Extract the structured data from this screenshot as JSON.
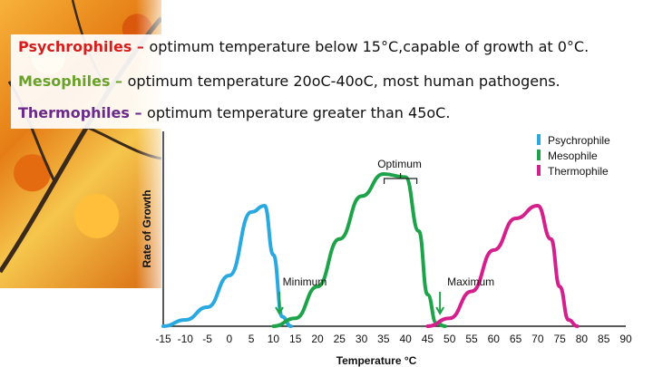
{
  "header_lines": [
    {
      "term": "Psychrophiles",
      "dash": " – ",
      "desc": "optimum temperature below 15°C,capable of growth at 0°C."
    },
    {
      "term": "Mesophiles",
      "dash": " – ",
      "desc": "optimum temperature 20oC-40oC, most human pathogens."
    },
    {
      "term": "Thermophiles",
      "dash": " – ",
      "desc": "optimum temperature greater than 45oC."
    }
  ],
  "chart_data": {
    "type": "line",
    "xlabel": "Temperature °C",
    "ylabel": "Rate of Growth",
    "xlim": [
      -15,
      90
    ],
    "x_ticks": [
      -15,
      -10,
      -5,
      0,
      5,
      10,
      15,
      20,
      25,
      30,
      35,
      40,
      45,
      50,
      55,
      60,
      65,
      70,
      75,
      80,
      85,
      90
    ],
    "ylim": [
      0,
      1
    ],
    "series": [
      {
        "name": "Psychrophile",
        "color": "#29a9e0",
        "points": [
          [
            -15,
            0
          ],
          [
            -10,
            0.04
          ],
          [
            -5,
            0.12
          ],
          [
            0,
            0.32
          ],
          [
            5,
            0.72
          ],
          [
            8,
            0.76
          ],
          [
            10,
            0.45
          ],
          [
            12,
            0.06
          ],
          [
            14,
            0
          ]
        ]
      },
      {
        "name": "Mesophile",
        "color": "#1fa34a",
        "points": [
          [
            10,
            0
          ],
          [
            15,
            0.05
          ],
          [
            20,
            0.25
          ],
          [
            25,
            0.55
          ],
          [
            30,
            0.82
          ],
          [
            35,
            0.96
          ],
          [
            40,
            0.94
          ],
          [
            43,
            0.6
          ],
          [
            45,
            0.2
          ],
          [
            47,
            0.02
          ],
          [
            49,
            0
          ]
        ]
      },
      {
        "name": "Thermophile",
        "color": "#d4208d",
        "points": [
          [
            45,
            0
          ],
          [
            50,
            0.05
          ],
          [
            55,
            0.22
          ],
          [
            60,
            0.48
          ],
          [
            65,
            0.68
          ],
          [
            70,
            0.76
          ],
          [
            73,
            0.55
          ],
          [
            75,
            0.25
          ],
          [
            77,
            0.04
          ],
          [
            79,
            0
          ]
        ]
      }
    ],
    "legend": {
      "position": "top-right",
      "entries": [
        "Psychrophile",
        "Mesophile",
        "Thermophile"
      ]
    },
    "annotations": [
      {
        "label": "Optimum",
        "x": 37
      },
      {
        "label": "Minimum",
        "x": 13
      },
      {
        "label": "Maximum",
        "x": 47
      }
    ]
  }
}
